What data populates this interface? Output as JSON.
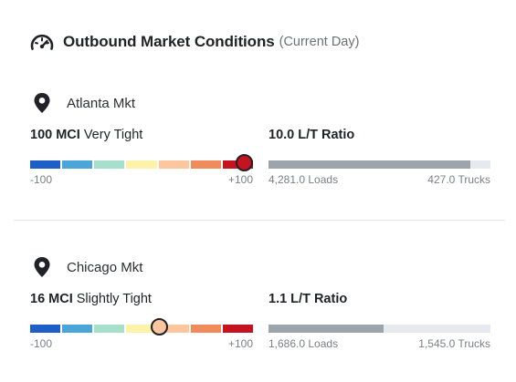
{
  "header": {
    "title": "Outbound Market Conditions",
    "subtitle": "(Current Day)"
  },
  "scale_colors": [
    "#1e5ec8",
    "#4aa5d8",
    "#a6e0cc",
    "#fdf3a8",
    "#fdc69c",
    "#f28b5c",
    "#c5141f"
  ],
  "markets": [
    {
      "name": "Atlanta Mkt",
      "mci_value": "100 MCI",
      "mci_label": "Very Tight",
      "mci": 100,
      "thumb_color": "#c5141f",
      "scale_min": "-100",
      "scale_max": "+100",
      "ratio": "10.0 L/T Ratio",
      "ratio_fill_fraction": 0.91,
      "loads": "4,281.0 Loads",
      "trucks": "427.0 Trucks"
    },
    {
      "name": "Chicago Mkt",
      "mci_value": "16 MCI",
      "mci_label": "Slightly Tight",
      "mci": 16,
      "thumb_color": "#fdc69c",
      "scale_min": "-100",
      "scale_max": "+100",
      "ratio": "1.1 L/T Ratio",
      "ratio_fill_fraction": 0.52,
      "loads": "1,686.0 Loads",
      "trucks": "1,545.0 Trucks"
    }
  ]
}
